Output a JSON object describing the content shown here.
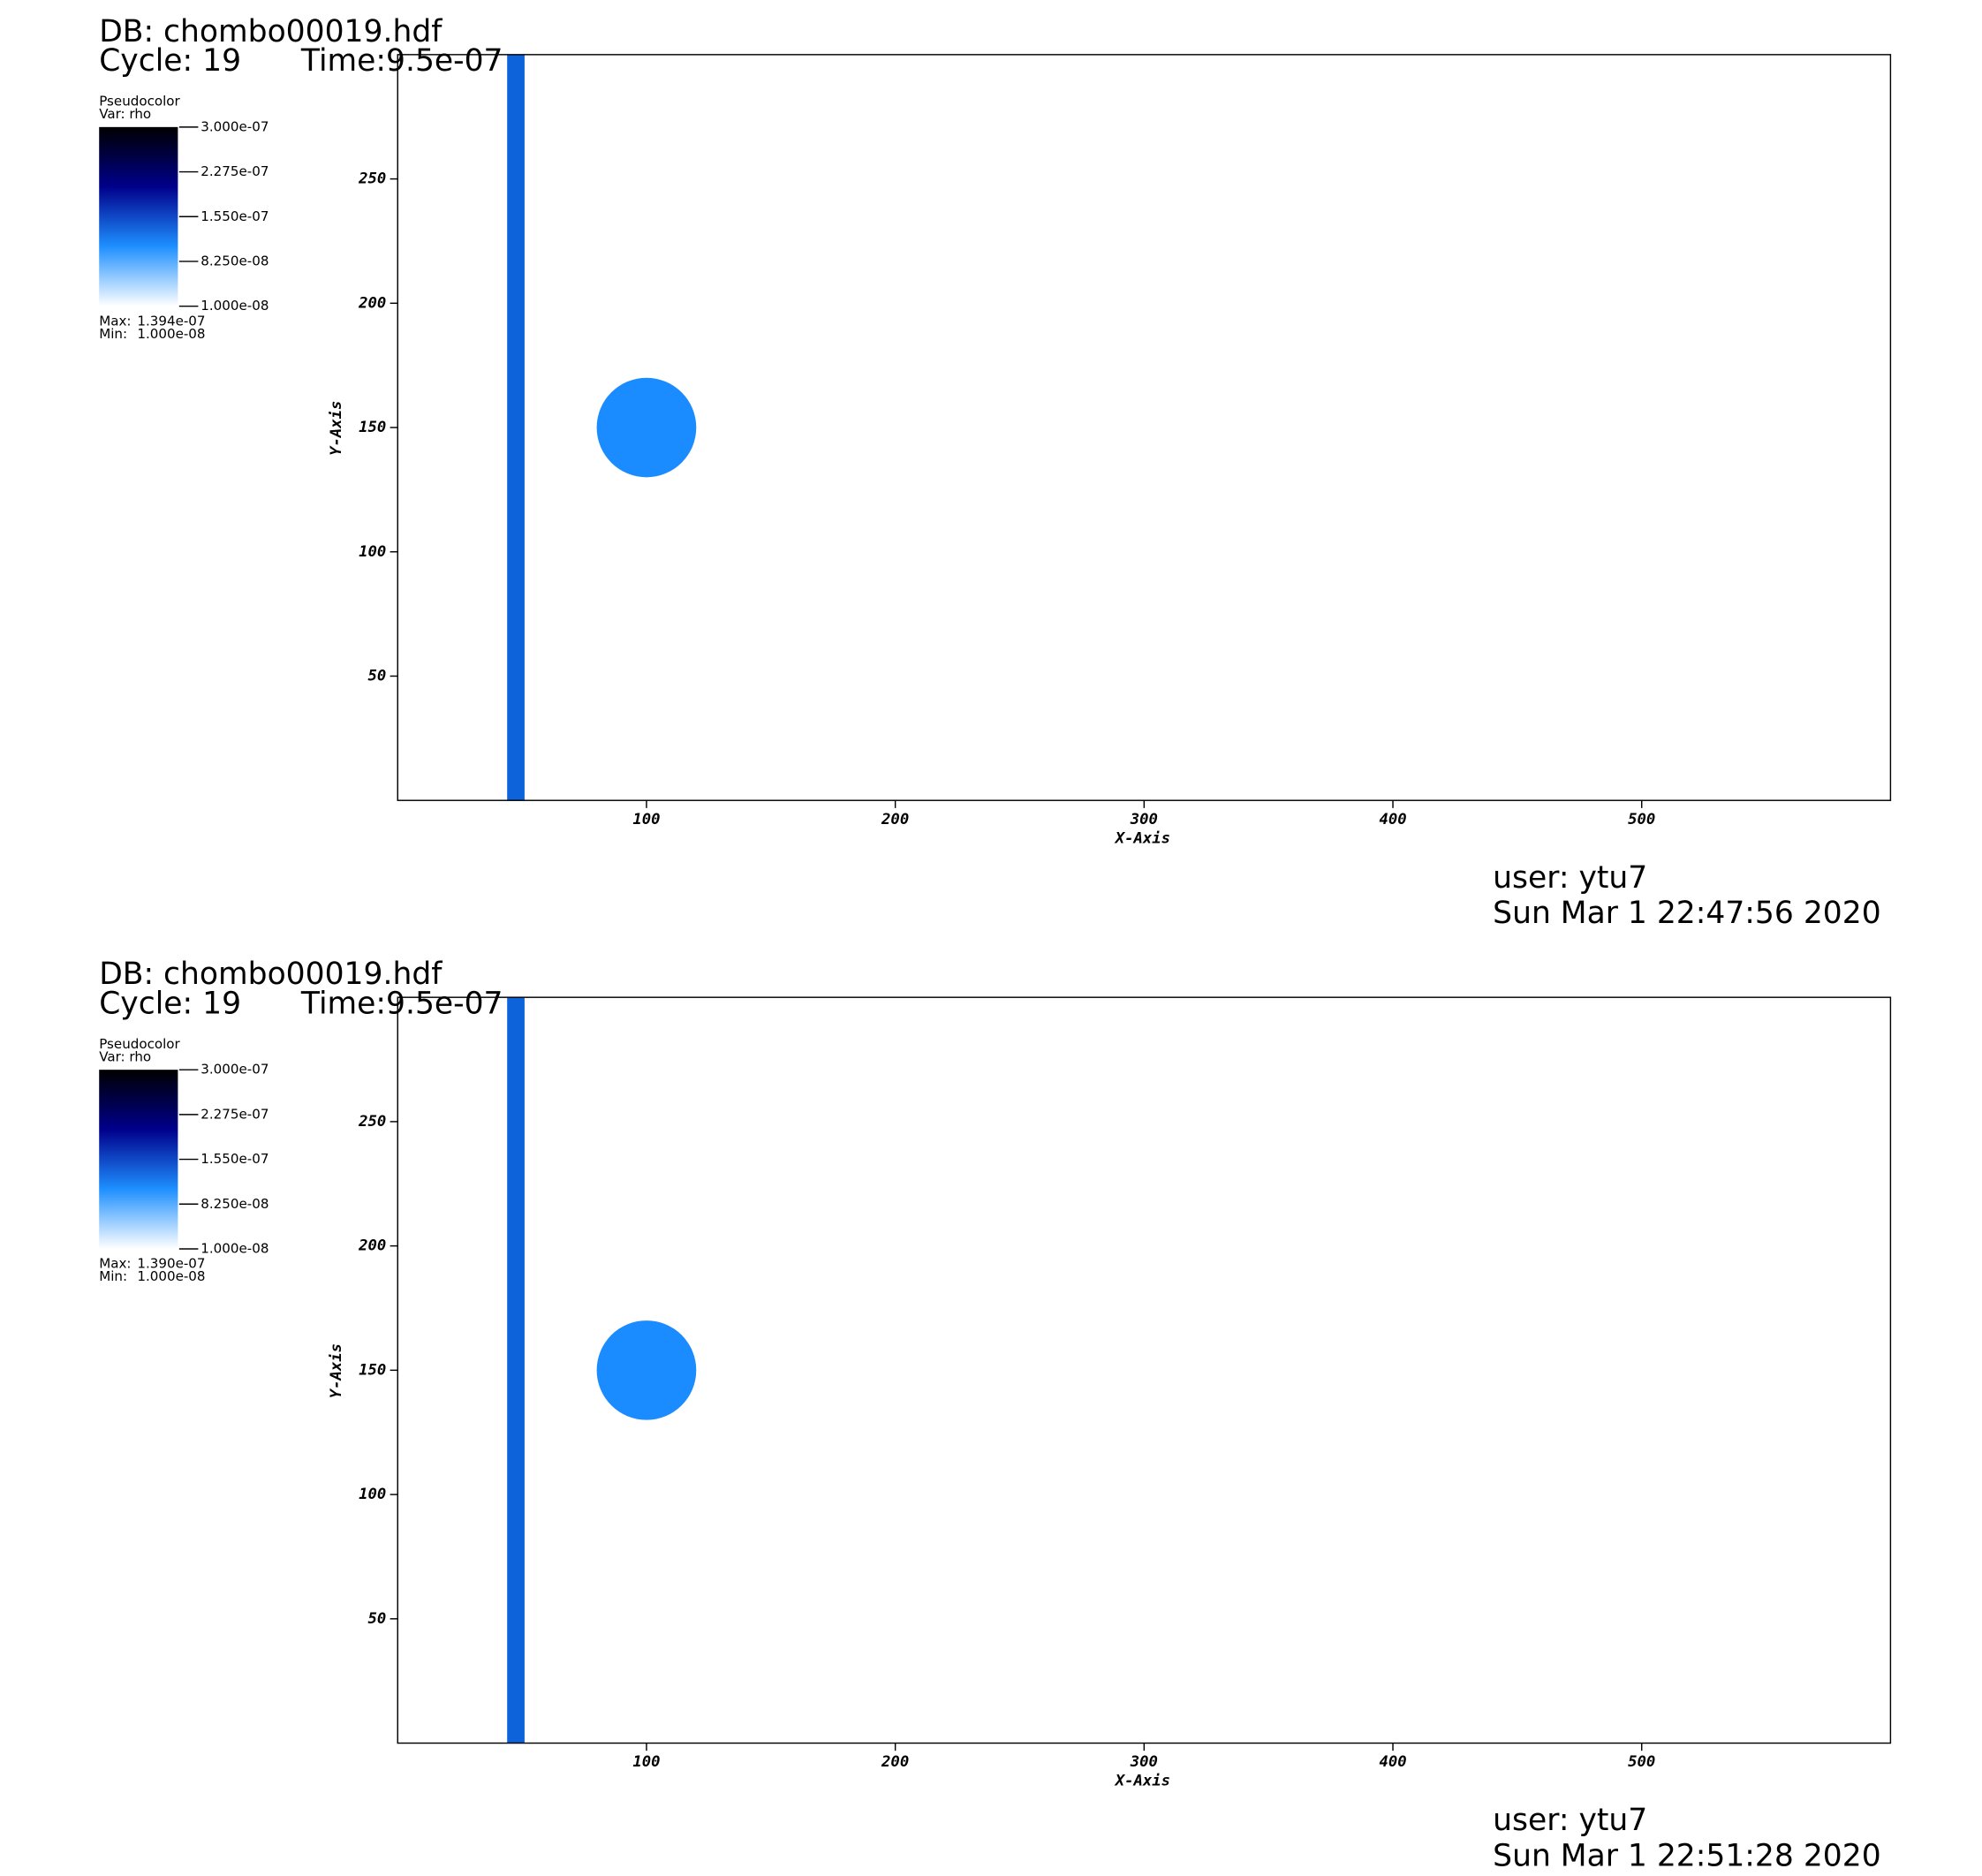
{
  "chart_data": [
    {
      "type": "pseudocolor",
      "title": "DB: chombo00019.hdf",
      "cycle": "Cycle: 19",
      "time": "Time:9.5e-07",
      "legend_title": "Pseudocolor",
      "legend_var": "Var: rho",
      "colormap": [
        "#ffffff",
        "#1e90ff",
        "#00008b",
        "#000000"
      ],
      "colorbar_lim": [
        1e-08,
        3e-07
      ],
      "colorbar_ticks": [
        {
          "value": 3e-07,
          "label": "3.000e-07"
        },
        {
          "value": 2.275e-07,
          "label": "2.275e-07"
        },
        {
          "value": 1.55e-07,
          "label": "1.550e-07"
        },
        {
          "value": 8.25e-08,
          "label": "8.250e-08"
        },
        {
          "value": 1e-08,
          "label": "1.000e-08"
        }
      ],
      "max_label": "Max:",
      "max": {
        "value": 1.394e-07,
        "label": "1.394e-07"
      },
      "min_label": "Min:",
      "min": {
        "value": 1e-08,
        "label": "1.000e-08"
      },
      "x_label": "X-Axis",
      "y_label": "Y-Axis",
      "xlim": [
        0,
        600
      ],
      "ylim": [
        0,
        300
      ],
      "xticks": [
        100,
        200,
        300,
        400,
        500
      ],
      "yticks": [
        50,
        100,
        150,
        200,
        250
      ],
      "shapes": [
        {
          "kind": "band",
          "x": [
            44,
            51
          ],
          "color": "#0d63d9"
        },
        {
          "kind": "disk",
          "center": [
            100,
            150
          ],
          "radius": 20,
          "color": "#1a8cff"
        }
      ],
      "user": "user: ytu7",
      "date": "Sun Mar  1 22:47:56 2020"
    },
    {
      "type": "pseudocolor",
      "title": "DB: chombo00019.hdf",
      "cycle": "Cycle: 19",
      "time": "Time:9.5e-07",
      "legend_title": "Pseudocolor",
      "legend_var": "Var: rho",
      "colormap": [
        "#ffffff",
        "#1e90ff",
        "#00008b",
        "#000000"
      ],
      "colorbar_lim": [
        1e-08,
        3e-07
      ],
      "colorbar_ticks": [
        {
          "value": 3e-07,
          "label": "3.000e-07"
        },
        {
          "value": 2.275e-07,
          "label": "2.275e-07"
        },
        {
          "value": 1.55e-07,
          "label": "1.550e-07"
        },
        {
          "value": 8.25e-08,
          "label": "8.250e-08"
        },
        {
          "value": 1e-08,
          "label": "1.000e-08"
        }
      ],
      "max_label": "Max:",
      "max": {
        "value": 1.39e-07,
        "label": "1.390e-07"
      },
      "min_label": "Min:",
      "min": {
        "value": 1e-08,
        "label": "1.000e-08"
      },
      "x_label": "X-Axis",
      "y_label": "Y-Axis",
      "xlim": [
        0,
        600
      ],
      "ylim": [
        0,
        300
      ],
      "xticks": [
        100,
        200,
        300,
        400,
        500
      ],
      "yticks": [
        50,
        100,
        150,
        200,
        250
      ],
      "shapes": [
        {
          "kind": "band",
          "x": [
            44,
            51
          ],
          "color": "#0d63d9"
        },
        {
          "kind": "disk",
          "center": [
            100,
            150
          ],
          "radius": 20,
          "color": "#1a8cff"
        }
      ],
      "user": "user: ytu7",
      "date": "Sun Mar  1 22:51:28 2020"
    }
  ]
}
